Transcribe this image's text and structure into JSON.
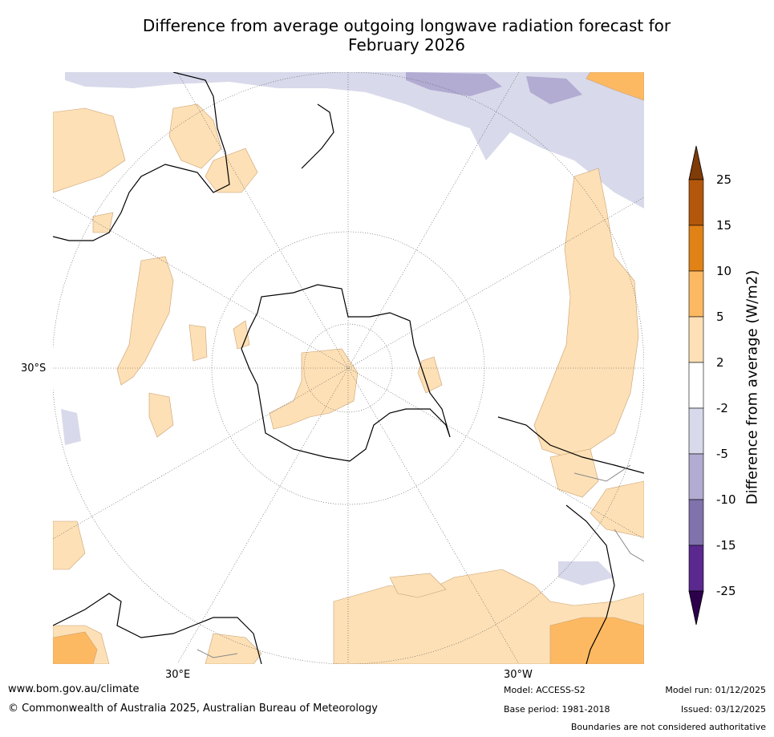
{
  "title": {
    "line1": "Difference from average outgoing longwave radiation forecast for",
    "line2": "February 2026"
  },
  "map": {
    "projection": "south-polar stereographic",
    "labels": {
      "lat_30s": "30°S",
      "lon_30e": "30°E",
      "lon_30w": "30°W"
    },
    "regions": [
      {
        "name": "antarctica-interior",
        "anomaly_class": "2 to 5"
      },
      {
        "name": "eastern-pacific-band",
        "anomaly_class": "2 to 5"
      },
      {
        "name": "southern-indian-ocean",
        "anomaly_class": "2 to 5"
      },
      {
        "name": "australia-north",
        "anomaly_class": "2 to 5"
      },
      {
        "name": "tropical-south-pacific",
        "anomaly_class": "-2 to -5"
      },
      {
        "name": "equatorial-pacific",
        "anomaly_class": "-5 to -10"
      },
      {
        "name": "southern-africa",
        "anomaly_class": "5 to 10"
      },
      {
        "name": "south-atlantic-coast",
        "anomaly_class": "5 to 10"
      },
      {
        "name": "southeast-atlantic",
        "anomaly_class": "-2 to -5"
      }
    ]
  },
  "colorbar": {
    "label": "Difference from average (W/m2)",
    "ticks": [
      "25",
      "15",
      "10",
      "5",
      "2",
      "-2",
      "-5",
      "-10",
      "-15",
      "-25"
    ],
    "bands": [
      {
        "range": "15 to 25",
        "color": "#b3570b"
      },
      {
        "range": "10 to 15",
        "color": "#e08216"
      },
      {
        "range": "5 to 10",
        "color": "#fdb962"
      },
      {
        "range": "2 to 5",
        "color": "#fde0b6"
      },
      {
        "range": "-2 to 2",
        "color": "#ffffff"
      },
      {
        "range": "-5 to -2",
        "color": "#d8d9ea"
      },
      {
        "range": "-10 to -5",
        "color": "#b2abd2"
      },
      {
        "range": "-15 to -10",
        "color": "#8073ac"
      },
      {
        "range": "-25 to -15",
        "color": "#5a288f"
      }
    ],
    "over_color": "#7f3b08",
    "under_color": "#2d004b"
  },
  "footer": {
    "url": "www.bom.gov.au/climate",
    "copyright": "© Commonwealth of Australia 2025, Australian Bureau of Meteorology",
    "model": "Model: ACCESS-S2",
    "base_period": "Base period: 1981-2018",
    "model_run": "Model run: 01/12/2025",
    "issued": "Issued: 03/12/2025",
    "disclaimer": "Boundaries are not considered authoritative"
  }
}
